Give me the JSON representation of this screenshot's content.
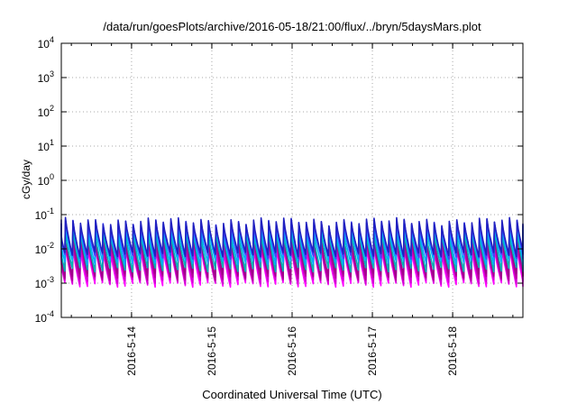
{
  "chart_data": {
    "type": "line",
    "title": "/data/run/goesPlots/archive/2016-05-18/21:00/flux/../bryn/5daysMars.plot",
    "xlabel": "Coordinated Universal Time (UTC)",
    "ylabel": "cGy/day",
    "yscale": "log",
    "ylim": [
      0.0001,
      10000
    ],
    "y_ticks": [
      {
        "value": 0.0001,
        "base": "10",
        "exp": "-4"
      },
      {
        "value": 0.001,
        "base": "10",
        "exp": "-3"
      },
      {
        "value": 0.01,
        "base": "10",
        "exp": "-2"
      },
      {
        "value": 0.1,
        "base": "10",
        "exp": "-1"
      },
      {
        "value": 1,
        "base": "10",
        "exp": "0"
      },
      {
        "value": 10,
        "base": "10",
        "exp": "1"
      },
      {
        "value": 100,
        "base": "10",
        "exp": "2"
      },
      {
        "value": 1000,
        "base": "10",
        "exp": "3"
      },
      {
        "value": 10000,
        "base": "10",
        "exp": "4"
      }
    ],
    "xlim": [
      "2016-05-13 03:00",
      "2016-05-18 21:00"
    ],
    "x_ticks": [
      "2016-5-14",
      "2016-5-15",
      "2016-5-16",
      "2016-5-17",
      "2016-5-18"
    ],
    "grid": true,
    "sawtooth_period_hours": 2.25,
    "series": [
      {
        "color": "#ff00ff",
        "peak": 0.011,
        "trough": 0.0009
      },
      {
        "color": "#d200d2",
        "peak": 0.014,
        "trough": 0.0011
      },
      {
        "color": "#b4009b",
        "peak": 0.018,
        "trough": 0.0014
      },
      {
        "color": "#a0008c",
        "peak": 0.022,
        "trough": 0.0017
      },
      {
        "color": "#00b4b4",
        "peak": 0.03,
        "trough": 0.0025
      },
      {
        "color": "#00aaff",
        "peak": 0.045,
        "trough": 0.004
      },
      {
        "color": "#4040ff",
        "peak": 0.058,
        "trough": 0.006
      },
      {
        "color": "#2020c0",
        "peak": 0.065,
        "trough": 0.007
      }
    ]
  }
}
